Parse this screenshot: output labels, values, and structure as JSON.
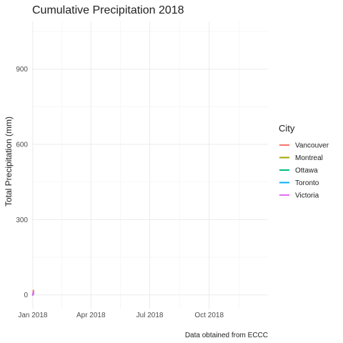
{
  "chart_data": {
    "type": "line",
    "title": "Cumulative Precipitation 2018",
    "xlabel": "",
    "ylabel": "Total Precipitation (mm)",
    "caption": "Data obtained from ECCC",
    "x_type": "date",
    "xlim": [
      "2017-12-31",
      "2018-12-31"
    ],
    "ylim": [
      -55,
      1090
    ],
    "x_ticks": [
      {
        "label": "Jan 2018",
        "date": "2018-01-01"
      },
      {
        "label": "Apr 2018",
        "date": "2018-04-01"
      },
      {
        "label": "Jul 2018",
        "date": "2018-07-01"
      },
      {
        "label": "Oct 2018",
        "date": "2018-10-01"
      }
    ],
    "y_ticks": [
      0,
      300,
      600,
      900
    ],
    "grid": true,
    "legend": {
      "title": "City",
      "position": "right"
    },
    "series": [
      {
        "name": "Vancouver",
        "color": "#F8766D",
        "x": [
          "2018-01-01",
          "2018-01-02"
        ],
        "y": [
          0,
          18
        ]
      },
      {
        "name": "Montreal",
        "color": "#A3A500",
        "x": [
          "2018-01-01",
          "2018-01-02"
        ],
        "y": [
          0,
          5
        ]
      },
      {
        "name": "Ottawa",
        "color": "#00BF7D",
        "x": [
          "2018-01-01",
          "2018-01-02"
        ],
        "y": [
          0,
          6
        ]
      },
      {
        "name": "Toronto",
        "color": "#00B0F6",
        "x": [
          "2018-01-01",
          "2018-01-02"
        ],
        "y": [
          0,
          10
        ]
      },
      {
        "name": "Victoria",
        "color": "#E76BF3",
        "x": [
          "2018-01-01",
          "2018-01-02"
        ],
        "y": [
          0,
          12
        ]
      }
    ]
  }
}
